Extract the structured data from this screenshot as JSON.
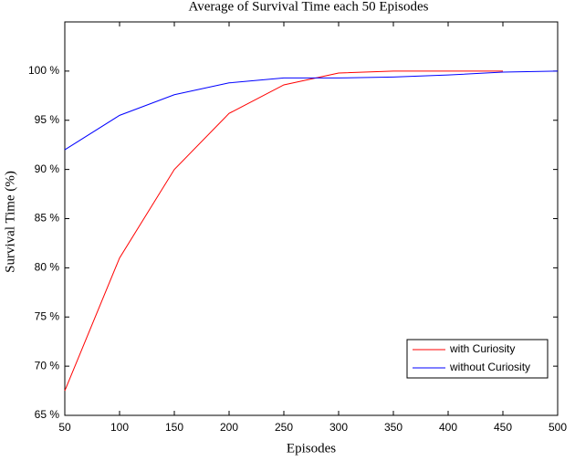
{
  "chart_data": {
    "type": "line",
    "title": "Average of Survival Time each 50 Episodes",
    "x_label": "Episodes",
    "y_label": "Survival Time (%)",
    "x": [
      50,
      100,
      150,
      200,
      250,
      300,
      350,
      400,
      450,
      500
    ],
    "series": [
      {
        "name": "with Curiosity",
        "color": "#ff0000",
        "values": [
          67.5,
          81,
          90,
          95.7,
          98.6,
          99.8,
          100,
          100,
          100,
          null
        ]
      },
      {
        "name": "without Curiosity",
        "color": "#0000ff",
        "values": [
          92,
          95.5,
          97.6,
          98.8,
          99.3,
          99.3,
          99.4,
          99.6,
          99.9,
          100
        ]
      }
    ],
    "xlim": [
      50,
      500
    ],
    "xticks": [
      50,
      100,
      150,
      200,
      250,
      300,
      350,
      400,
      450,
      500
    ],
    "ylim": [
      65,
      105
    ],
    "yticks": [
      {
        "value": 65,
        "label": "65 %"
      },
      {
        "value": 70,
        "label": "70 %"
      },
      {
        "value": 75,
        "label": "75 %"
      },
      {
        "value": 80,
        "label": "80 %"
      },
      {
        "value": 85,
        "label": "85 %"
      },
      {
        "value": 90,
        "label": "90 %"
      },
      {
        "value": 95,
        "label": "95 %"
      },
      {
        "value": 100,
        "label": "100 %"
      }
    ],
    "grid": false,
    "legend": "lower right"
  }
}
